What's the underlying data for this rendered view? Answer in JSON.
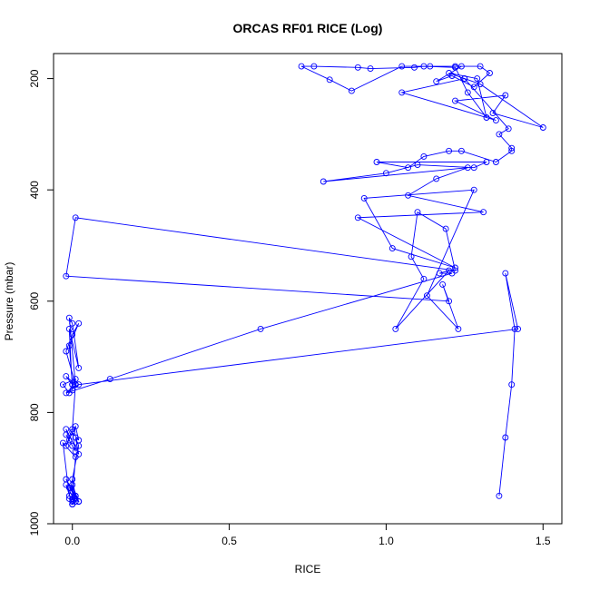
{
  "chart_data": {
    "type": "line",
    "title": "ORCAS RF01 RICE (Log)",
    "xlabel": "RICE",
    "ylabel": "Pressure (mbar)",
    "xlim": [
      -0.06,
      1.56
    ],
    "ylim": [
      1000,
      155
    ],
    "y_reversed": true,
    "x_ticks": [
      0.0,
      0.5,
      1.0,
      1.5
    ],
    "x_tick_labels": [
      "0.0",
      "0.5",
      "1.0",
      "1.5"
    ],
    "y_ticks": [
      200,
      400,
      600,
      800,
      1000
    ],
    "y_tick_labels": [
      "200",
      "400",
      "600",
      "800",
      "1000"
    ],
    "grid": false,
    "colors": {
      "series": "#0000ff",
      "axes": "#000000"
    },
    "series": [
      {
        "marker": "open-circle",
        "x": [
          1.36,
          1.38,
          1.4,
          1.41,
          1.38,
          1.42,
          0.02,
          -0.02,
          0.12,
          0.6,
          1.21,
          1.17,
          1.2,
          1.03,
          1.12,
          1.08,
          1.1,
          1.19,
          1.22,
          0.01,
          -0.02,
          1.2,
          1.18,
          1.23,
          1.13,
          1.28,
          0.93,
          1.02,
          1.22,
          0.91,
          1.31,
          1.07,
          1.16,
          1.26,
          0.8,
          1.0,
          1.1,
          1.28,
          1.32,
          0.97,
          1.07,
          1.12,
          1.2,
          1.24,
          1.35,
          1.4,
          1.4,
          1.36,
          1.39,
          1.25,
          1.05,
          1.35,
          1.22,
          1.38,
          1.34,
          1.5,
          1.3,
          1.25,
          1.2,
          1.29,
          1.32,
          1.26,
          1.22,
          1.12,
          1.09,
          0.95,
          0.91,
          0.77,
          0.73,
          0.82,
          0.89,
          1.05,
          1.14,
          1.22,
          1.3,
          1.33,
          1.28,
          1.21,
          1.16,
          1.24
        ],
        "y": [
          950,
          845,
          750,
          650,
          550,
          650,
          750,
          765,
          740,
          650,
          550,
          550,
          545,
          650,
          560,
          520,
          440,
          470,
          545,
          450,
          555,
          600,
          570,
          650,
          590,
          400,
          415,
          505,
          540,
          450,
          440,
          410,
          380,
          360,
          385,
          370,
          355,
          360,
          350,
          350,
          360,
          340,
          330,
          330,
          350,
          330,
          325,
          300,
          290,
          200,
          225,
          275,
          240,
          230,
          262,
          288,
          210,
          200,
          190,
          200,
          270,
          225,
          180,
          178,
          180,
          182,
          180,
          178,
          178,
          202,
          222,
          178,
          178,
          178,
          178,
          190,
          215,
          195,
          205,
          178
        ]
      },
      {
        "marker": "open-circle",
        "x": [
          0.0,
          0.01,
          0.0,
          -0.01,
          0.02,
          -0.01,
          0.01,
          0.0,
          0.01,
          -0.02,
          0.0,
          0.01,
          -0.02,
          0.02,
          0.0,
          0.0,
          0.01,
          -0.03,
          -0.01,
          0.02,
          0.01,
          0.02,
          -0.02,
          -0.01,
          0.0,
          -0.02,
          0.01,
          0.0,
          0.02,
          0.01,
          -0.02,
          0.0,
          0.01,
          0.01,
          -0.03,
          -0.01,
          0.0,
          -0.02,
          0.01,
          0.0,
          -0.01,
          0.02,
          0.0,
          -0.02,
          0.01,
          -0.01,
          0.0,
          0.02,
          -0.01,
          0.0
        ],
        "y": [
          960,
          950,
          965,
          955,
          960,
          935,
          950,
          920,
          960,
          930,
          965,
          955,
          920,
          960,
          930,
          955,
          880,
          855,
          950,
          860,
          845,
          875,
          830,
          850,
          860,
          840,
          870,
          835,
          850,
          825,
          860,
          830,
          750,
          740,
          750,
          765,
          750,
          735,
          750,
          750,
          680,
          640,
          660,
          690,
          750,
          630,
          640,
          720,
          650,
          760
        ]
      }
    ]
  }
}
